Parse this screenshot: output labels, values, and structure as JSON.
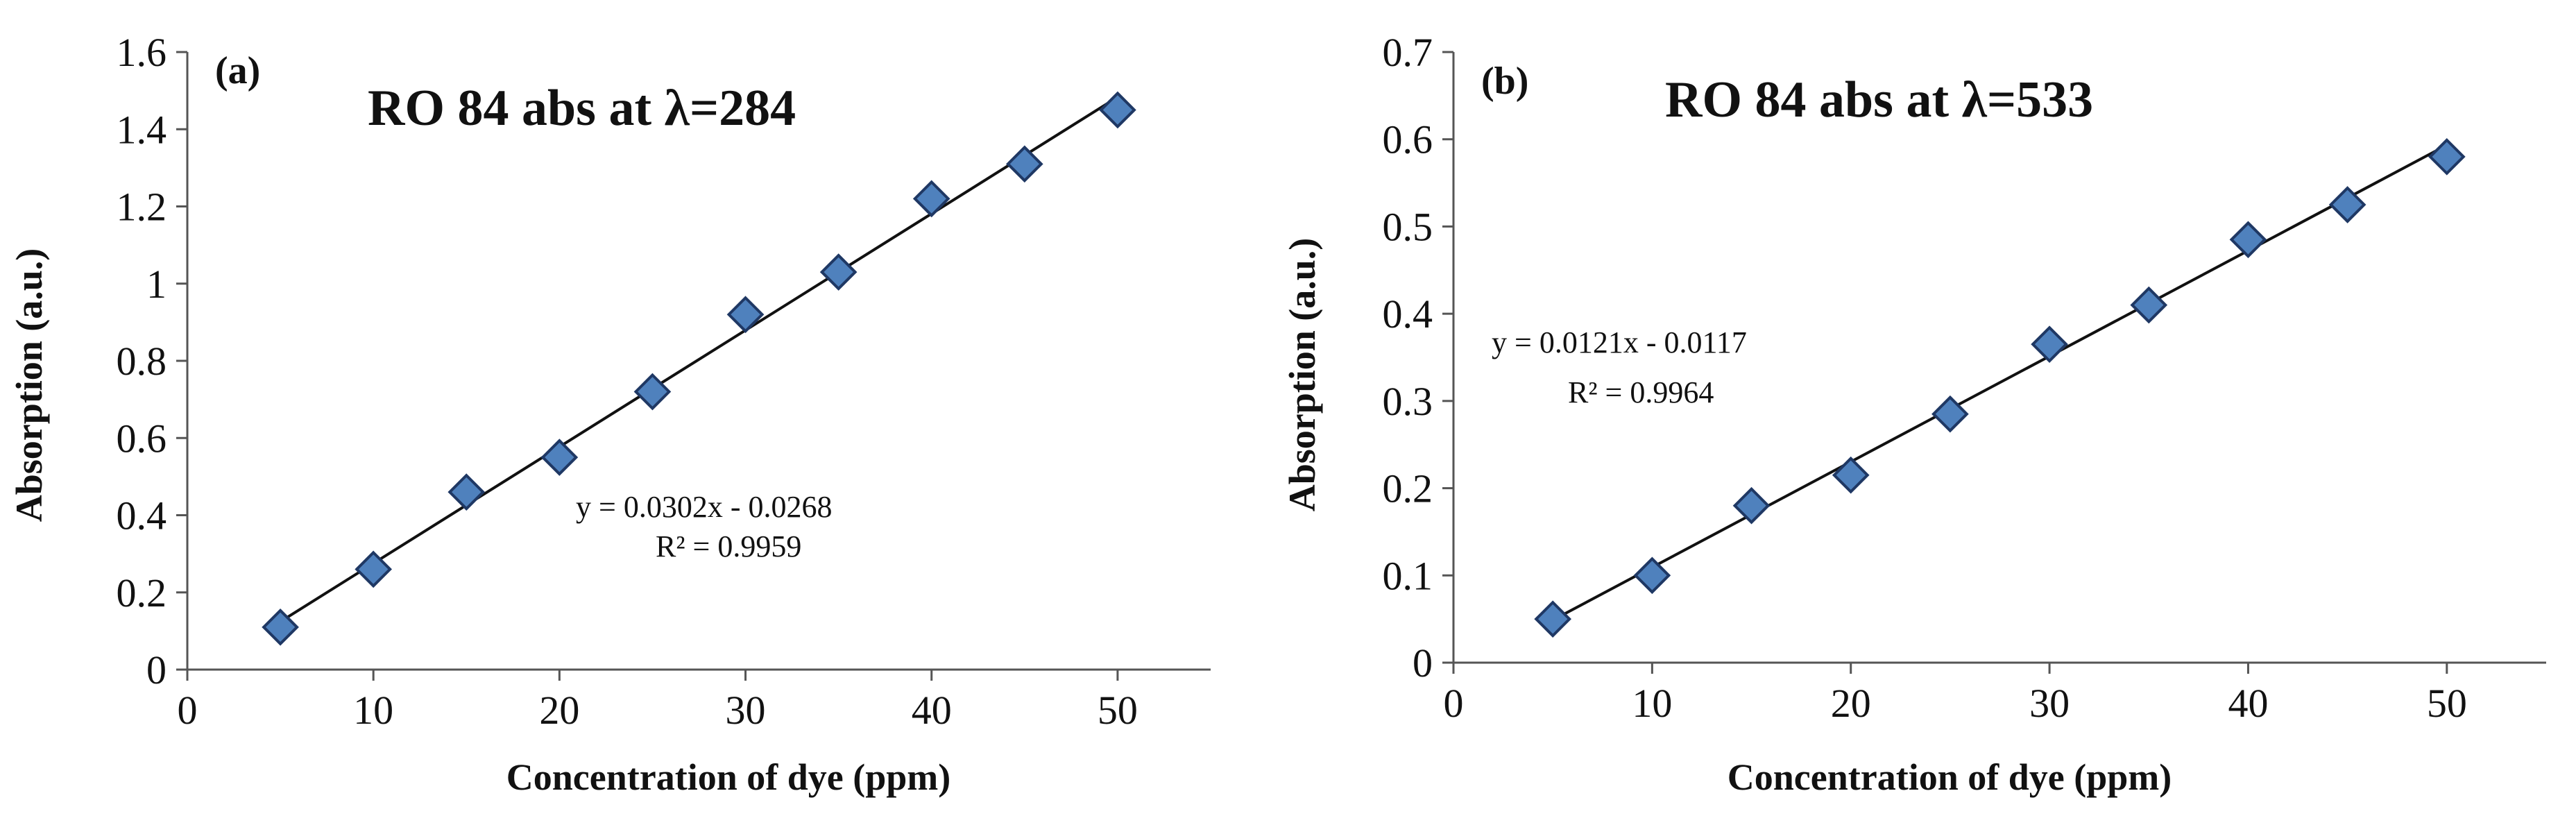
{
  "chart_data": [
    {
      "type": "scatter",
      "panel_label": "(a)",
      "title": "RO 84 abs at λ=284",
      "xlabel": "Concentration of dye (ppm)",
      "ylabel": "Absorption (a.u.)",
      "xlim": [
        0,
        55
      ],
      "ylim": [
        0,
        1.6
      ],
      "x_ticks": [
        0,
        10,
        20,
        30,
        40,
        50
      ],
      "x_tick_labels": [
        "0",
        "10",
        "20",
        "30",
        "40",
        "50"
      ],
      "y_ticks": [
        0,
        0.2,
        0.4,
        0.6,
        0.8,
        1.0,
        1.2,
        1.4,
        1.6
      ],
      "y_tick_labels": [
        "0",
        "0.2",
        "0.4",
        "0.6",
        "0.8",
        "1",
        "1.2",
        "1.4",
        "1.6"
      ],
      "grid": false,
      "series": [
        {
          "name": "RO 84 abs at λ=284",
          "marker": "diamond",
          "color": "#4f81bd",
          "x": [
            5,
            10,
            15,
            20,
            25,
            30,
            35,
            40,
            45,
            50
          ],
          "y": [
            0.11,
            0.26,
            0.46,
            0.55,
            0.72,
            0.92,
            1.03,
            1.22,
            1.31,
            1.45
          ]
        }
      ],
      "trendline": {
        "slope": 0.0302,
        "intercept": -0.0268,
        "x_range": [
          5,
          50
        ]
      },
      "equation": "y = 0.0302x - 0.0268",
      "r_squared": "R² = 0.9959"
    },
    {
      "type": "scatter",
      "panel_label": "(b)",
      "title": "RO 84 abs at λ=533",
      "xlabel": "Concentration of dye (ppm)",
      "ylabel": "Absorption (a.u.)",
      "xlim": [
        0,
        55
      ],
      "ylim": [
        0,
        0.7
      ],
      "x_ticks": [
        0,
        10,
        20,
        30,
        40,
        50
      ],
      "x_tick_labels": [
        "0",
        "10",
        "20",
        "30",
        "40",
        "50"
      ],
      "y_ticks": [
        0,
        0.1,
        0.2,
        0.3,
        0.4,
        0.5,
        0.6,
        0.7
      ],
      "y_tick_labels": [
        "0",
        "0.1",
        "0.2",
        "0.3",
        "0.4",
        "0.5",
        "0.6",
        "0.7"
      ],
      "grid": false,
      "series": [
        {
          "name": "RO 84 abs at λ=533",
          "marker": "diamond",
          "color": "#4f81bd",
          "x": [
            5,
            10,
            15,
            20,
            25,
            30,
            35,
            40,
            45,
            50
          ],
          "y": [
            0.05,
            0.1,
            0.18,
            0.215,
            0.285,
            0.365,
            0.41,
            0.485,
            0.525,
            0.58
          ]
        }
      ],
      "trendline": {
        "slope": 0.0121,
        "intercept": -0.0117,
        "x_range": [
          5,
          50
        ]
      },
      "equation": "y = 0.0121x - 0.0117",
      "r_squared": "R² = 0.9964"
    }
  ]
}
